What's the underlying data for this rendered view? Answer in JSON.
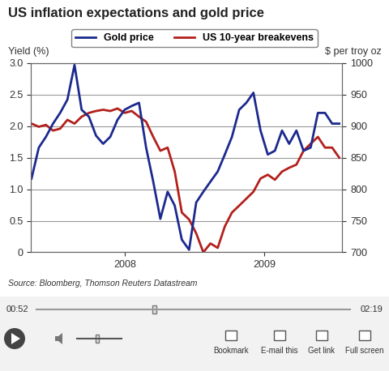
{
  "chart_data": {
    "type": "line",
    "title": "US inflation expectations and gold price",
    "y_label": "Yield (%)",
    "y2_label": "$ per troy oz",
    "source": "Source: Bloomberg, Thomson Reuters Datastream",
    "x": [
      2007.333,
      2007.385,
      2007.436,
      2007.487,
      2007.538,
      2007.59,
      2007.641,
      2007.692,
      2007.744,
      2007.795,
      2007.846,
      2007.897,
      2007.949,
      2008.0,
      2008.051,
      2008.103,
      2008.154,
      2008.205,
      2008.256,
      2008.308,
      2008.359,
      2008.41,
      2008.462,
      2008.513,
      2008.564,
      2008.615,
      2008.667,
      2008.718,
      2008.769,
      2008.821,
      2008.872,
      2008.923,
      2008.974,
      2009.026,
      2009.077,
      2009.128,
      2009.179,
      2009.231,
      2009.282,
      2009.333,
      2009.385,
      2009.436,
      2009.487,
      2009.538
    ],
    "series": [
      {
        "name": "Gold price",
        "color": "#1c2a8e",
        "axis": "y2",
        "values": [
          817,
          866,
          883,
          904,
          921,
          942,
          997,
          926,
          915,
          885,
          872,
          883,
          910,
          926,
          932,
          937,
          866,
          812,
          753,
          796,
          774,
          720,
          704,
          779,
          796,
          812,
          828,
          855,
          883,
          926,
          937,
          953,
          893,
          855,
          861,
          893,
          872,
          893,
          861,
          866,
          921,
          921,
          904,
          904
        ]
      },
      {
        "name": "US 10-year breakevens",
        "color": "#b3201c",
        "values": [
          2.04,
          1.99,
          2.02,
          1.93,
          1.96,
          2.1,
          2.04,
          2.15,
          2.21,
          2.24,
          2.26,
          2.24,
          2.28,
          2.21,
          2.24,
          2.15,
          2.07,
          1.83,
          1.61,
          1.66,
          1.28,
          0.63,
          0.52,
          0.3,
          0.0,
          0.14,
          0.07,
          0.41,
          0.63,
          0.74,
          0.85,
          0.96,
          1.17,
          1.23,
          1.15,
          1.28,
          1.34,
          1.39,
          1.61,
          1.72,
          1.83,
          1.66,
          1.66,
          1.5
        ]
      }
    ],
    "xlim": [
      2007.33,
      2009.56
    ],
    "xticks": [
      2008,
      2009
    ],
    "ylim": [
      0,
      3.0
    ],
    "yticks": [
      0,
      0.5,
      1.0,
      1.5,
      2.0,
      2.5,
      3.0
    ],
    "y2lim": [
      700,
      1000
    ],
    "y2ticks": [
      700,
      750,
      800,
      850,
      900,
      950,
      1000
    ],
    "grid": true,
    "legend": "upper center"
  },
  "player": {
    "current_time": "00:52",
    "duration": "02:19",
    "buttons": [
      "Bookmark",
      "E-mail this",
      "Get link",
      "Full screen"
    ]
  }
}
